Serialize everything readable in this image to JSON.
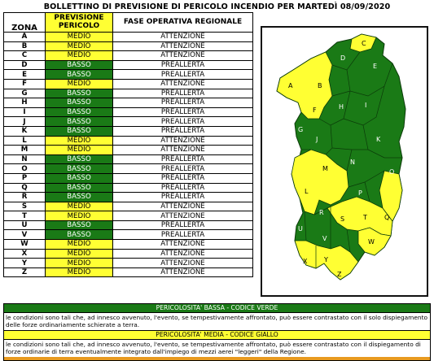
{
  "title": "BOLLETTINO DI PREVISIONE DI PERICOLO INCENDIO PER MARTEDÌ 08/09/2020",
  "table": {
    "headers": {
      "zona": "ZONA",
      "previsione": "PREVISIONE PERICOLO",
      "fase": "FASE OPERATIVA REGIONALE"
    },
    "rows": [
      {
        "zona": "A",
        "livello": "MEDIO",
        "fase": "ATTENZIONE",
        "color": "#ffff33"
      },
      {
        "zona": "B",
        "livello": "MEDIO",
        "fase": "ATTENZIONE",
        "color": "#ffff33"
      },
      {
        "zona": "C",
        "livello": "MEDIO",
        "fase": "ATTENZIONE",
        "color": "#ffff33"
      },
      {
        "zona": "D",
        "livello": "BASSO",
        "fase": "PREALLERTA",
        "color": "#1a7a16"
      },
      {
        "zona": "E",
        "livello": "BASSO",
        "fase": "PREALLERTA",
        "color": "#1a7a16"
      },
      {
        "zona": "F",
        "livello": "MEDIO",
        "fase": "ATTENZIONE",
        "color": "#ffff33"
      },
      {
        "zona": "G",
        "livello": "BASSO",
        "fase": "PREALLERTA",
        "color": "#1a7a16"
      },
      {
        "zona": "H",
        "livello": "BASSO",
        "fase": "PREALLERTA",
        "color": "#1a7a16"
      },
      {
        "zona": "I",
        "livello": "BASSO",
        "fase": "PREALLERTA",
        "color": "#1a7a16"
      },
      {
        "zona": "J",
        "livello": "BASSO",
        "fase": "PREALLERTA",
        "color": "#1a7a16"
      },
      {
        "zona": "K",
        "livello": "BASSO",
        "fase": "PREALLERTA",
        "color": "#1a7a16"
      },
      {
        "zona": "L",
        "livello": "MEDIO",
        "fase": "ATTENZIONE",
        "color": "#ffff33"
      },
      {
        "zona": "M",
        "livello": "MEDIO",
        "fase": "ATTENZIONE",
        "color": "#ffff33"
      },
      {
        "zona": "N",
        "livello": "BASSO",
        "fase": "PREALLERTA",
        "color": "#1a7a16"
      },
      {
        "zona": "O",
        "livello": "BASSO",
        "fase": "PREALLERTA",
        "color": "#1a7a16"
      },
      {
        "zona": "P",
        "livello": "BASSO",
        "fase": "PREALLERTA",
        "color": "#1a7a16"
      },
      {
        "zona": "Q",
        "livello": "BASSO",
        "fase": "PREALLERTA",
        "color": "#1a7a16"
      },
      {
        "zona": "R",
        "livello": "BASSO",
        "fase": "PREALLERTA",
        "color": "#1a7a16"
      },
      {
        "zona": "S",
        "livello": "MEDIO",
        "fase": "ATTENZIONE",
        "color": "#ffff33"
      },
      {
        "zona": "T",
        "livello": "MEDIO",
        "fase": "ATTENZIONE",
        "color": "#ffff33"
      },
      {
        "zona": "U",
        "livello": "BASSO",
        "fase": "PREALLERTA",
        "color": "#1a7a16"
      },
      {
        "zona": "V",
        "livello": "BASSO",
        "fase": "PREALLERTA",
        "color": "#1a7a16"
      },
      {
        "zona": "W",
        "livello": "MEDIO",
        "fase": "ATTENZIONE",
        "color": "#ffff33"
      },
      {
        "zona": "X",
        "livello": "MEDIO",
        "fase": "ATTENZIONE",
        "color": "#ffff33"
      },
      {
        "zona": "Y",
        "livello": "MEDIO",
        "fase": "ATTENZIONE",
        "color": "#ffff33"
      },
      {
        "zona": "Z",
        "livello": "MEDIO",
        "fase": "ATTENZIONE",
        "color": "#ffff33"
      }
    ]
  },
  "map": {
    "labels": [
      "A",
      "B",
      "C",
      "D",
      "E",
      "F",
      "G",
      "H",
      "I",
      "J",
      "K",
      "L",
      "M",
      "N",
      "O",
      "P",
      "Q",
      "R",
      "S",
      "T",
      "U",
      "V",
      "W",
      "X",
      "Y",
      "Z"
    ],
    "colors": {
      "basso": "#1a7a16",
      "medio": "#ffff33"
    }
  },
  "legend": {
    "bassa_title": "PERICOLOSITA' BASSA - CODICE VERDE",
    "bassa_text": "le condizioni sono tali che, ad innesco avvenuto, l'evento, se tempestivamente affrontato, può essere contrastato con il solo dispiegamento delle forze ordinariamente schierate a terra.",
    "media_title": "PERICOLOSITA' MEDIA - CODICE GIALLO",
    "media_text": "le condizioni sono tali che, ad innesco avvenuto, l'evento, se tempestivamente affrontato, può essere contrastato con il dispiegamento di forze ordinarie di terra eventualmente integrato dall'impiego di mezzi aerei \"leggeri\" della Regione."
  }
}
